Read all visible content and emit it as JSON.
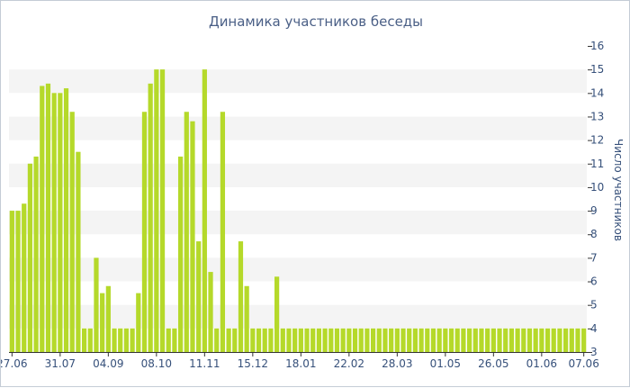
{
  "chart_data": {
    "type": "bar",
    "title": "Динамика участников беседы",
    "ylabel": "Число участников",
    "xlabel": "",
    "ylim": [
      3,
      16
    ],
    "yticks": [
      3,
      4,
      5,
      6,
      7,
      8,
      9,
      10,
      11,
      12,
      13,
      14,
      15,
      16
    ],
    "y_axis_position": "right",
    "bar_color": "#b5d92a",
    "grid": "alternating horizontal bands",
    "band_color": "#f4f4f4",
    "xtick_labels": [
      "27.06",
      "31.07",
      "04.09",
      "08.10",
      "11.11",
      "15.12",
      "18.01",
      "22.02",
      "28.03",
      "01.05",
      "26.05",
      "01.06",
      "07.06"
    ],
    "xtick_bar_index": [
      0,
      8,
      16,
      24,
      32,
      40,
      48,
      56,
      64,
      72,
      80,
      88,
      95
    ],
    "values": [
      9,
      9,
      9.3,
      11,
      11.3,
      14.3,
      14.4,
      14,
      14,
      14.2,
      13.2,
      11.5,
      4,
      4,
      7,
      5.5,
      5.8,
      4,
      4,
      4,
      4,
      5.5,
      13.2,
      14.4,
      15,
      15,
      4,
      4,
      11.3,
      13.2,
      12.8,
      7.7,
      15,
      6.4,
      4,
      13.2,
      4,
      4,
      7.7,
      5.8,
      4,
      4,
      4,
      4,
      6.2,
      4,
      4,
      4,
      4,
      4,
      4,
      4,
      4,
      4,
      4,
      4,
      4,
      4,
      4,
      4,
      4,
      4,
      4,
      4,
      4,
      4,
      4,
      4,
      4,
      4,
      4,
      4,
      4,
      4,
      4,
      4,
      4,
      4,
      4,
      4,
      4,
      4,
      4,
      4,
      4,
      4,
      4,
      4,
      4,
      4,
      4,
      4,
      4,
      4,
      4,
      4
    ]
  }
}
